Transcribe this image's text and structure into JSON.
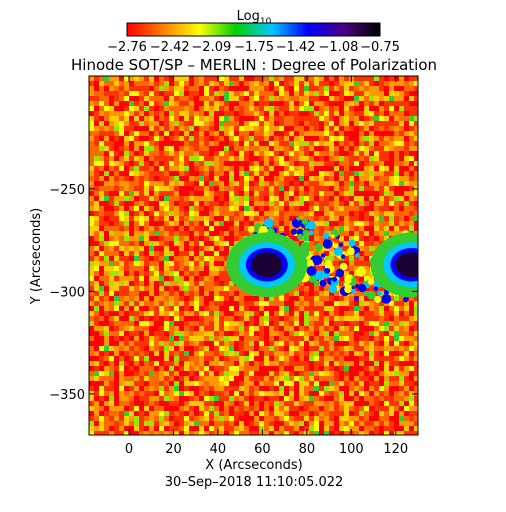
{
  "chart_data": {
    "type": "heatmap",
    "title": "Hinode SOT/SP – MERLIN : Degree of Polarization",
    "xlabel": "X (Arcseconds)",
    "ylabel": "Y (Arcseconds)",
    "timestamp": "30–Sep–2018 11:10:05.022",
    "xlim": [
      -18,
      130
    ],
    "ylim": [
      -370,
      -195
    ],
    "x_ticks": [
      0,
      20,
      40,
      60,
      80,
      100,
      120
    ],
    "x_tick_labels": [
      "0",
      "20",
      "40",
      "60",
      "80",
      "100",
      "120"
    ],
    "y_ticks": [
      -250,
      -300,
      -350
    ],
    "y_tick_labels": [
      "−250",
      "−300",
      "−350"
    ],
    "colorbar": {
      "title_base": "Log",
      "title_sub": "10",
      "range": [
        -2.76,
        -0.75
      ],
      "ticks": [
        -2.76,
        -2.42,
        -2.09,
        -1.75,
        -1.42,
        -1.08,
        -0.75
      ],
      "tick_labels": [
        "−2.76",
        "−2.42",
        "−2.09",
        "−1.75",
        "−1.42",
        "−1.08",
        "−0.75"
      ],
      "colormap": [
        "#ff0000",
        "#ff7f00",
        "#ffff00",
        "#00d000",
        "#00c8ff",
        "#0000ff",
        "#4b0082",
        "#000000"
      ]
    },
    "features": [
      {
        "x": 62,
        "y": -287,
        "radius": 7,
        "value": -0.78
      },
      {
        "x": 127,
        "y": -287,
        "radius": 7,
        "value": -0.78
      }
    ],
    "background_value": -2.6
  }
}
